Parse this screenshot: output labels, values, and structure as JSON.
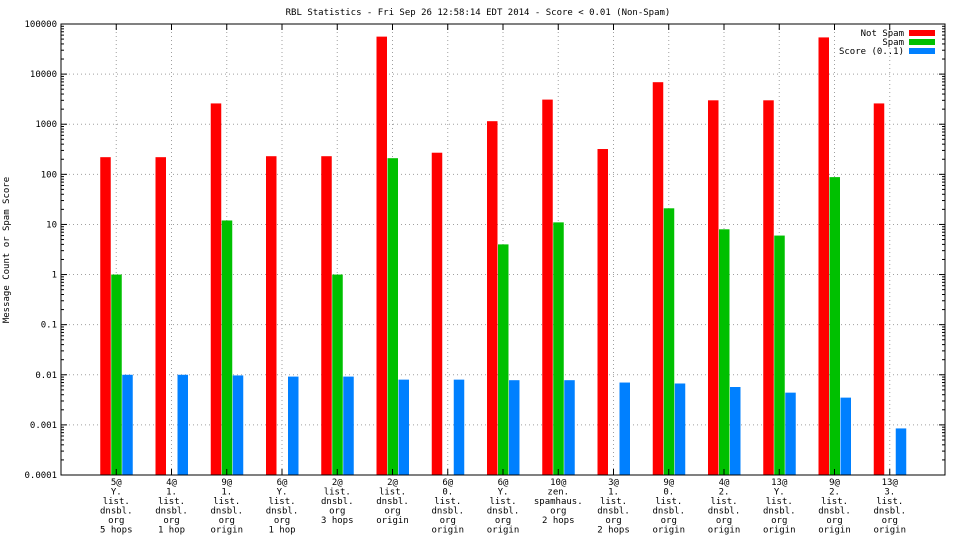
{
  "chart_data": {
    "type": "bar",
    "title": "RBL Statistics - Fri Sep 26 12:58:14 EDT 2014 - Score < 0.01 (Non-Spam)",
    "xlabel": "",
    "ylabel": "Message Count or Spam Score",
    "yscale": "log",
    "ylim": [
      0.0001,
      100000
    ],
    "ytick_labels": [
      "100000",
      "10000",
      "1000",
      "100",
      "10",
      "1",
      "0.1",
      "0.01",
      "0.001",
      "0.0001"
    ],
    "legend_position": "top-right",
    "grid": true,
    "categories": [
      [
        "5@",
        "Y.",
        "list.",
        "dnsbl.",
        "org",
        "5 hops"
      ],
      [
        "4@",
        "1.",
        "list.",
        "dnsbl.",
        "org",
        "1 hop"
      ],
      [
        "9@",
        "1.",
        "list.",
        "dnsbl.",
        "org",
        "origin"
      ],
      [
        "6@",
        "Y.",
        "list.",
        "dnsbl.",
        "org",
        "1 hop"
      ],
      [
        "2@",
        "list.",
        "dnsbl.",
        "org",
        "3 hops"
      ],
      [
        "2@",
        "list.",
        "dnsbl.",
        "org",
        "origin"
      ],
      [
        "6@",
        "0.",
        "list.",
        "dnsbl.",
        "org",
        "origin"
      ],
      [
        "6@",
        "Y.",
        "list.",
        "dnsbl.",
        "org",
        "origin"
      ],
      [
        "10@",
        "zen.",
        "spamhaus.",
        "org",
        "2 hops"
      ],
      [
        "3@",
        "1.",
        "list.",
        "dnsbl.",
        "org",
        "2 hops"
      ],
      [
        "9@",
        "0.",
        "list.",
        "dnsbl.",
        "org",
        "origin"
      ],
      [
        "4@",
        "2.",
        "list.",
        "dnsbl.",
        "org",
        "origin"
      ],
      [
        "13@",
        "Y.",
        "list.",
        "dnsbl.",
        "org",
        "origin"
      ],
      [
        "9@",
        "2.",
        "list.",
        "dnsbl.",
        "org",
        "origin"
      ],
      [
        "13@",
        "3.",
        "list.",
        "dnsbl.",
        "org",
        "origin"
      ]
    ],
    "series": [
      {
        "name": "Not Spam",
        "color": "#ff0000",
        "values": [
          220,
          220,
          2600,
          230,
          230,
          56000,
          270,
          1150,
          3100,
          320,
          6900,
          3000,
          3000,
          54000,
          2600
        ]
      },
      {
        "name": "Spam",
        "color": "#00c000",
        "values": [
          1,
          null,
          12,
          null,
          1,
          210,
          null,
          4,
          11,
          null,
          21,
          8,
          6,
          88,
          null
        ]
      },
      {
        "name": "Score (0..1)",
        "color": "#0080ff",
        "values": [
          0.01,
          0.01,
          0.0097,
          0.0092,
          0.0092,
          0.008,
          0.008,
          0.0078,
          0.0078,
          0.007,
          0.0067,
          0.0057,
          0.0044,
          0.0035,
          0.00085
        ]
      }
    ]
  }
}
